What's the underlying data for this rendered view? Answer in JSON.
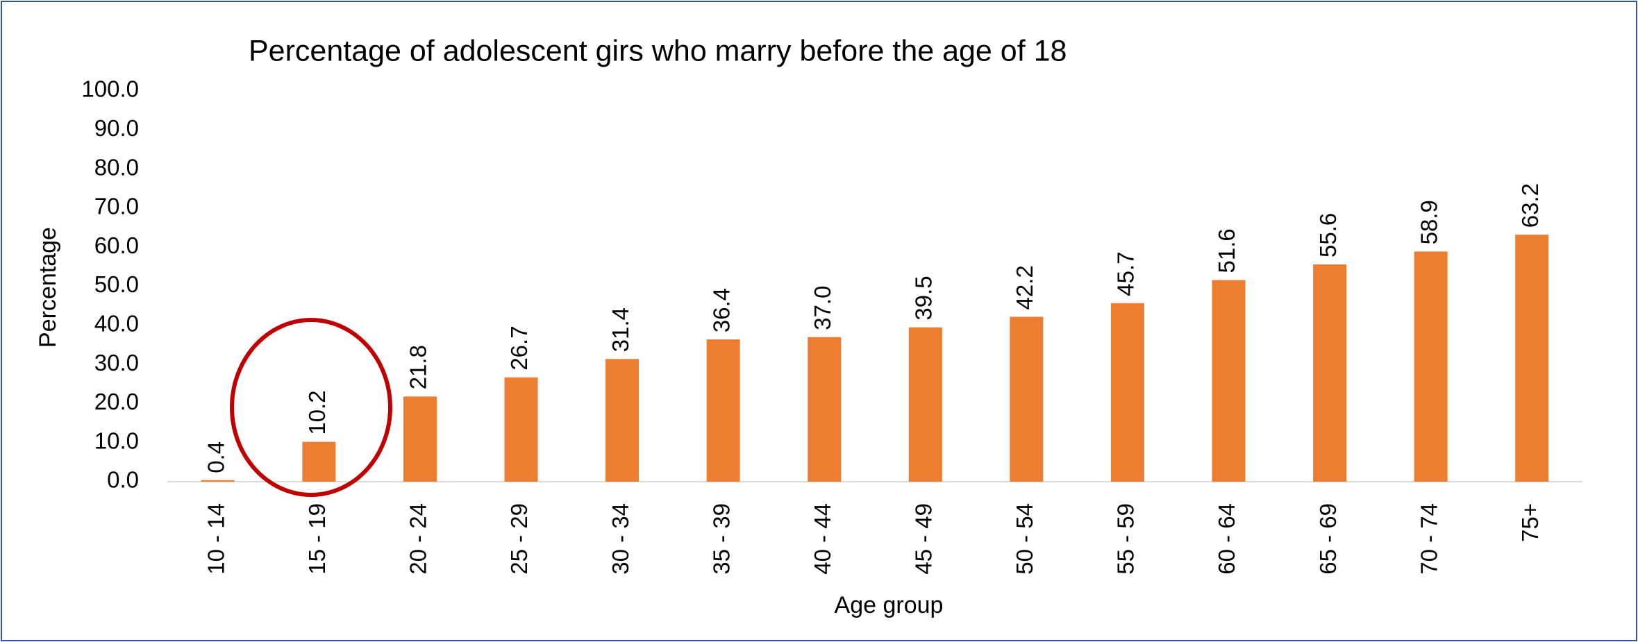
{
  "chart_data": {
    "type": "bar",
    "title": "Percentage of adolescent girs who marry before the age of 18",
    "x_label": "Age group",
    "y_label": "Percentage",
    "categories": [
      "10 - 14",
      "15 - 19",
      "20 - 24",
      "25 - 29",
      "30 - 34",
      "35 - 39",
      "40 - 44",
      "45 - 49",
      "50 - 54",
      "55 - 59",
      "60 - 64",
      "65 - 69",
      "70 - 74",
      "75+"
    ],
    "values": [
      0.4,
      10.2,
      21.8,
      26.7,
      31.4,
      36.4,
      37.0,
      39.5,
      42.2,
      45.7,
      51.6,
      55.6,
      58.9,
      63.2
    ],
    "value_labels": [
      "0.4",
      "10.2",
      "21.8",
      "26.7",
      "31.4",
      "36.4",
      "37.0",
      "39.5",
      "42.2",
      "45.7",
      "51.6",
      "55.6",
      "58.9",
      "63.2"
    ],
    "color": "#ed7d31",
    "ylim": [
      0,
      100
    ],
    "yticks": [
      {
        "value": 0,
        "label": "0.0"
      },
      {
        "value": 10,
        "label": "10.0"
      },
      {
        "value": 20,
        "label": "20.0"
      },
      {
        "value": 30,
        "label": "30.0"
      },
      {
        "value": 40,
        "label": "40.0"
      },
      {
        "value": 50,
        "label": "50.0"
      },
      {
        "value": 60,
        "label": "60.0"
      },
      {
        "value": 70,
        "label": "70.0"
      },
      {
        "value": 80,
        "label": "80.0"
      },
      {
        "value": 90,
        "label": "90.0"
      },
      {
        "value": 100,
        "label": "100.0"
      }
    ],
    "grid": false
  }
}
